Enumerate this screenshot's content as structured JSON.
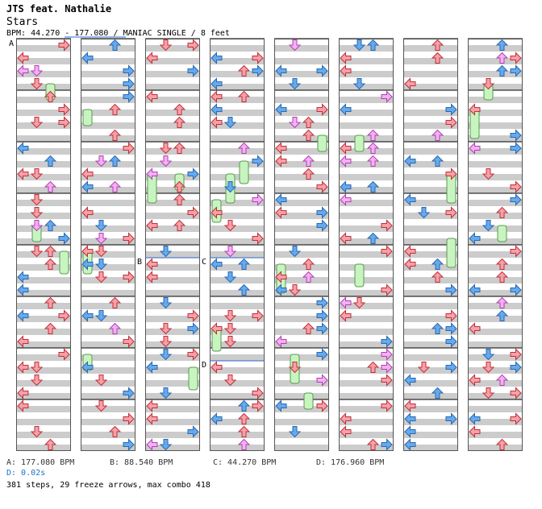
{
  "song": {
    "title": "JTS feat. Nathalie",
    "subtitle": "Stars",
    "info": "BPM: 44.270 - 177.080 / MANIAC SINGLE / 8 feet"
  },
  "markers": [
    "A",
    "B",
    "C",
    "D"
  ],
  "legend": {
    "a": "A: 177.080 BPM",
    "b": "B: 88.540 BPM",
    "c": "C: 44.270 BPM",
    "d": "D: 176.960 BPM",
    "delay": "D: 0.02s"
  },
  "summary": "381 steps, 29 freeze arrows, max combo 418",
  "colors": {
    "stripe": "#cccccc",
    "border": "#555555",
    "arrow_blue": "#66aaee",
    "arrow_red": "#f6a0a8",
    "arrow_pink": "#f4b0f4",
    "freeze": "#c8f4c0",
    "marker_line": "#3366cc"
  },
  "chart_data": {
    "type": "step-chart",
    "columns": 8,
    "lanes": [
      "left",
      "down",
      "up",
      "right"
    ],
    "measures_per_column": 8,
    "total_measures": 64,
    "steps": 381,
    "freeze_arrows": 29,
    "max_combo": 418
  }
}
